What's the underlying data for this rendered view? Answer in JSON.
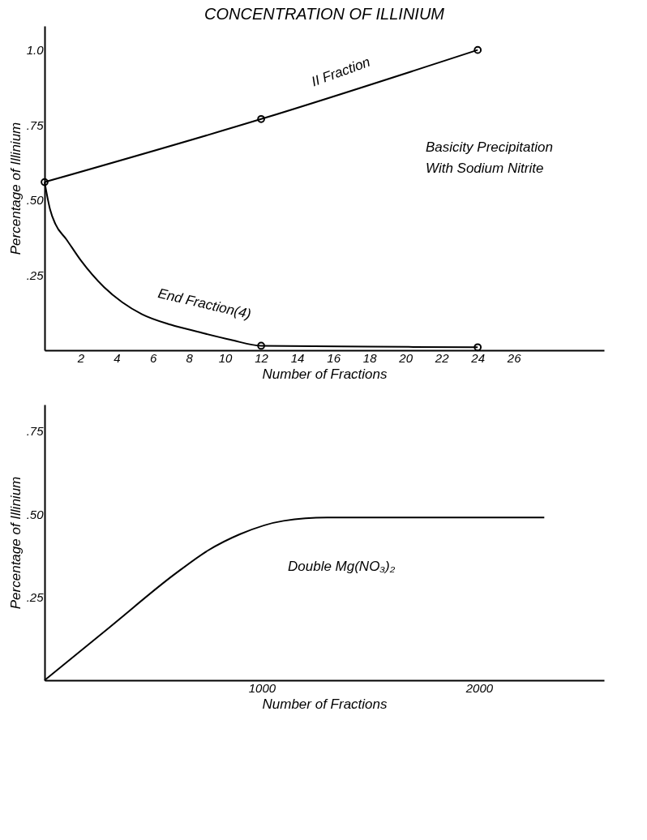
{
  "chart_data": [
    {
      "type": "line",
      "title": "CONCENTRATION OF ILLINIUM",
      "xlabel": "Number of Fractions",
      "ylabel": "Percentage of Illinium",
      "xlim": [
        0,
        31
      ],
      "xticks": [
        2,
        4,
        6,
        8,
        10,
        12,
        14,
        16,
        18,
        20,
        22,
        24,
        26
      ],
      "ylim": [
        0,
        1.08
      ],
      "yticks": [
        {
          "value": 0.25,
          "label": ".25"
        },
        {
          "value": 0.5,
          "label": ".50"
        },
        {
          "value": 0.75,
          "label": ".75"
        },
        {
          "value": 1.0,
          "label": "1.0"
        }
      ],
      "grid": false,
      "legend": false,
      "series": [
        {
          "name": "II Fraction",
          "marker": "circle",
          "color": "#000000",
          "x": [
            0,
            12,
            24
          ],
          "values": [
            0.56,
            0.77,
            1.0
          ]
        },
        {
          "name": "End Fraction(4)",
          "marker": "none",
          "color": "#000000",
          "x": [
            0,
            0.3,
            0.6,
            1.2,
            2,
            3.3,
            4.3,
            5.4,
            7,
            8.6,
            10.3,
            12,
            18,
            24
          ],
          "values": [
            0.56,
            0.47,
            0.42,
            0.37,
            0.3,
            0.21,
            0.16,
            0.12,
            0.085,
            0.06,
            0.035,
            0.015,
            0.012,
            0.01
          ]
        },
        {
          "type": "scatter",
          "marker": "circle",
          "color": "#000000",
          "x": [
            12,
            24
          ],
          "values": [
            0.015,
            0.01
          ]
        }
      ],
      "annotations": [
        "Basicity Precipitation",
        "With Sodium Nitrite"
      ]
    },
    {
      "type": "line",
      "xlabel": "Number of Fractions",
      "ylabel": "Percentage of Illinium",
      "xlim": [
        0,
        2575
      ],
      "xticks": [
        1000,
        2000
      ],
      "ylim": [
        0,
        0.83
      ],
      "yticks": [
        {
          "value": 0.25,
          "label": ".25"
        },
        {
          "value": 0.5,
          "label": ".50"
        },
        {
          "value": 0.75,
          "label": ".75"
        }
      ],
      "grid": false,
      "legend": false,
      "series": [
        {
          "marker": "none",
          "color": "#000000",
          "x": [
            0,
            300,
            600,
            750,
            900,
            1100,
            1300,
            2300
          ],
          "values": [
            0,
            0.16,
            0.32,
            0.39,
            0.44,
            0.48,
            0.49,
            0.49
          ]
        }
      ],
      "annotations": [
        "Double Mg(NO₃)₂"
      ]
    }
  ]
}
